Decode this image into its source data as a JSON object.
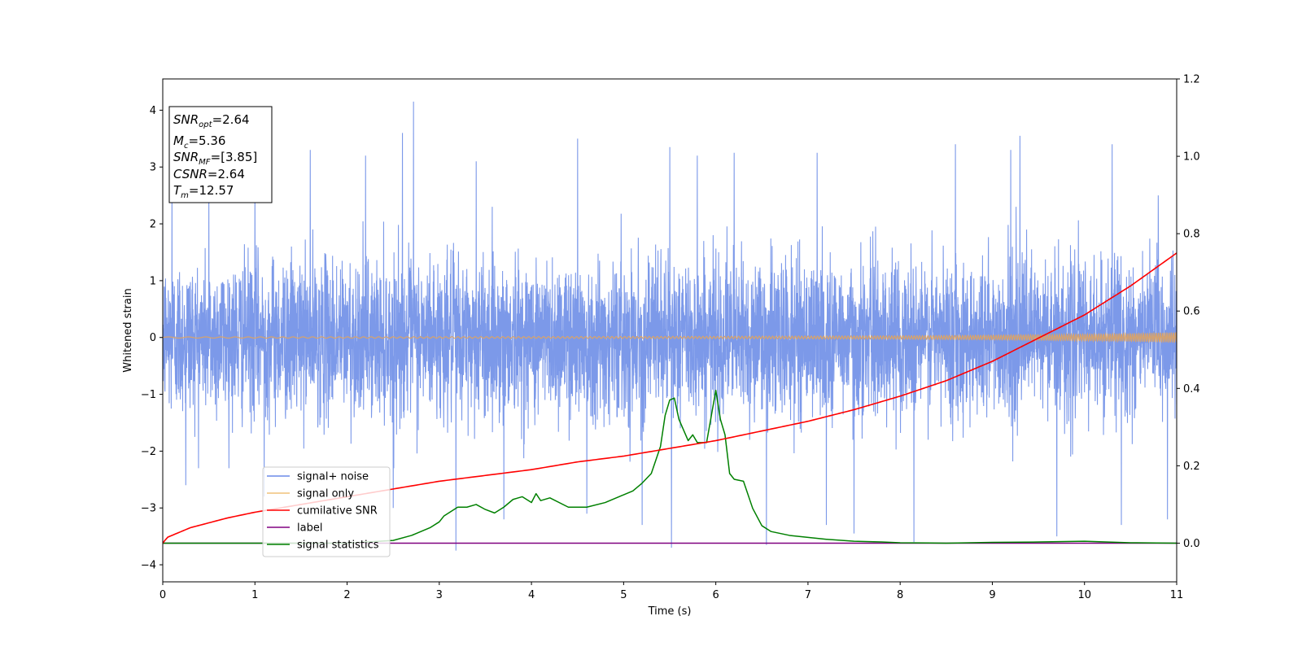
{
  "chart_data": {
    "type": "line",
    "xlabel": "Time (s)",
    "ylabel": "Whitened strain",
    "xlim": [
      0,
      11
    ],
    "ylim": [
      -4.3,
      4.55
    ],
    "y2lim": [
      -0.1,
      1.2
    ],
    "xticks": [
      "0",
      "1",
      "2",
      "3",
      "4",
      "5",
      "6",
      "7",
      "8",
      "9",
      "10",
      "11"
    ],
    "xtick_values": [
      0,
      1,
      2,
      3,
      4,
      5,
      6,
      7,
      8,
      9,
      10,
      11
    ],
    "yticks": [
      "4",
      "3",
      "2",
      "1",
      "0",
      "−1",
      "−2",
      "−3",
      "−4"
    ],
    "ytick_values": [
      4,
      3,
      2,
      1,
      0,
      -1,
      -2,
      -3,
      -4
    ],
    "y2ticks": [
      "1.2",
      "1.0",
      "0.8",
      "0.6",
      "0.4",
      "0.2",
      "0.0"
    ],
    "y2tick_values": [
      1.2,
      1.0,
      0.8,
      0.6,
      0.4,
      0.2,
      0.0
    ],
    "info_box": {
      "snr_opt_base": "SNR",
      "snr_opt_sub": "opt",
      "snr_opt_value": "=2.64",
      "mc_base": "M",
      "mc_sub": "c",
      "mc_value": "=5.36",
      "snr_mf_base": "SNR",
      "snr_mf_sub": "MF",
      "snr_mf_value": "=[3.85]",
      "csnr_base": "CSNR",
      "csnr_value": "=2.64",
      "tm_base": "T",
      "tm_sub": "m",
      "tm_value": "=12.57"
    },
    "legend": {
      "placement": "lower-left",
      "entries": [
        {
          "label": "signal+ noise",
          "color": "#6c8ae8"
        },
        {
          "label": "signal only",
          "color": "#f0c27a"
        },
        {
          "label": "cumilative SNR",
          "color": "#ff0000"
        },
        {
          "label": "label",
          "color": "#800080"
        },
        {
          "label": "signal statistics",
          "color": "#008000"
        }
      ]
    },
    "series": [
      {
        "name": "signal+ noise",
        "axis": "left",
        "color": "#7593e8",
        "style": "dense noise, amplitude ~ ±2 with spikes",
        "peaks_x": [
          0.1,
          0.5,
          1.0,
          1.6,
          2.2,
          2.6,
          2.72,
          3.4,
          4.5,
          5.5,
          5.8,
          6.2,
          7.1,
          8.6,
          9.2,
          9.3,
          10.3,
          10.8
        ],
        "peaks_y": [
          2.9,
          2.6,
          2.8,
          3.3,
          3.2,
          3.6,
          4.15,
          3.1,
          3.5,
          3.35,
          3.2,
          3.25,
          3.25,
          3.4,
          3.3,
          3.55,
          3.4,
          2.5
        ],
        "troughs_x": [
          0.25,
          1.1,
          2.5,
          3.18,
          3.7,
          4.6,
          5.2,
          5.52,
          6.55,
          7.2,
          7.5,
          8.15,
          9.7,
          10.4,
          10.9
        ],
        "troughs_y": [
          -2.6,
          -2.8,
          -3.0,
          -3.75,
          -3.2,
          -3.1,
          -3.3,
          -3.7,
          -3.65,
          -3.3,
          -3.45,
          -3.6,
          -3.5,
          -3.3,
          -3.2
        ]
      },
      {
        "name": "signal only",
        "axis": "left",
        "color": "#d9a36a",
        "x": [
          0,
          2,
          4,
          6,
          8,
          9,
          10,
          10.5,
          11
        ],
        "amplitude": [
          0.01,
          0.012,
          0.015,
          0.02,
          0.03,
          0.04,
          0.06,
          0.07,
          0.09
        ]
      },
      {
        "name": "cumilative SNR",
        "axis": "right",
        "color": "#ff0000",
        "x": [
          0,
          0.05,
          0.3,
          0.7,
          1.0,
          1.5,
          2.0,
          2.5,
          3.0,
          3.5,
          4.0,
          4.5,
          5.0,
          5.5,
          6.0,
          6.5,
          7.0,
          7.5,
          8.0,
          8.5,
          9.0,
          9.5,
          10.0,
          10.5,
          11.0
        ],
        "values": [
          0.0,
          0.015,
          0.04,
          0.065,
          0.08,
          0.1,
          0.12,
          0.14,
          0.16,
          0.175,
          0.19,
          0.21,
          0.225,
          0.245,
          0.265,
          0.29,
          0.315,
          0.345,
          0.38,
          0.42,
          0.47,
          0.53,
          0.59,
          0.665,
          0.75
        ]
      },
      {
        "name": "label",
        "axis": "right",
        "color": "#800080",
        "x": [
          0,
          11
        ],
        "values": [
          0.0,
          0.0
        ]
      },
      {
        "name": "signal statistics",
        "axis": "right",
        "color": "#008000",
        "x": [
          0,
          0.5,
          1.0,
          1.5,
          2.0,
          2.5,
          2.7,
          2.9,
          3.0,
          3.05,
          3.2,
          3.3,
          3.4,
          3.5,
          3.6,
          3.7,
          3.8,
          3.9,
          4.0,
          4.05,
          4.1,
          4.2,
          4.4,
          4.6,
          4.8,
          5.0,
          5.1,
          5.2,
          5.3,
          5.4,
          5.45,
          5.5,
          5.55,
          5.6,
          5.7,
          5.75,
          5.8,
          5.9,
          6.0,
          6.05,
          6.1,
          6.15,
          6.2,
          6.3,
          6.4,
          6.5,
          6.6,
          6.8,
          7.0,
          7.2,
          7.5,
          7.8,
          8.0,
          8.5,
          9.0,
          9.5,
          10.0,
          10.5,
          11.0
        ],
        "values": [
          0.0,
          0.0,
          0.0,
          0.0,
          0.0,
          0.007,
          0.02,
          0.04,
          0.055,
          0.07,
          0.093,
          0.093,
          0.1,
          0.087,
          0.078,
          0.093,
          0.113,
          0.12,
          0.105,
          0.128,
          0.11,
          0.117,
          0.093,
          0.093,
          0.105,
          0.125,
          0.135,
          0.155,
          0.18,
          0.25,
          0.33,
          0.37,
          0.375,
          0.32,
          0.265,
          0.28,
          0.26,
          0.26,
          0.395,
          0.32,
          0.28,
          0.18,
          0.165,
          0.16,
          0.09,
          0.045,
          0.03,
          0.02,
          0.015,
          0.01,
          0.005,
          0.003,
          0.001,
          0.0,
          0.002,
          0.003,
          0.005,
          0.001,
          0.0
        ]
      }
    ]
  }
}
